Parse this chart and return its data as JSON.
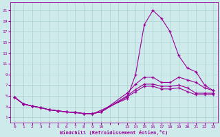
{
  "xlabel": "Windchill (Refroidissement éolien,°C)",
  "bg_color": "#ceeaea",
  "grid_color": "#aacfcf",
  "line_color": "#990099",
  "marker": "+",
  "xtick_positions": [
    0,
    1,
    2,
    3,
    4,
    5,
    6,
    7,
    8,
    9,
    10,
    11,
    12,
    13,
    14,
    15,
    16,
    17,
    18,
    19,
    20,
    21,
    22,
    23
  ],
  "xtick_labels": [
    "0",
    "1",
    "2",
    "3",
    "4",
    "5",
    "6",
    "7",
    "8",
    "9",
    "10",
    "",
    "",
    "13",
    "14",
    "15",
    "16",
    "17",
    "18",
    "19",
    "20",
    "21",
    "22",
    "23"
  ],
  "ytick_positions": [
    1,
    3,
    5,
    7,
    9,
    11,
    13,
    15,
    17,
    19,
    21
  ],
  "xlim": [
    -0.5,
    23.5
  ],
  "ylim": [
    0.0,
    22.5
  ],
  "series": [
    {
      "x": [
        0,
        1,
        2,
        3,
        4,
        5,
        6,
        7,
        8,
        9,
        13,
        14,
        15,
        16,
        17,
        18,
        19,
        20,
        21,
        22,
        23
      ],
      "y": [
        4.7,
        3.5,
        3.1,
        2.8,
        2.4,
        2.2,
        2.0,
        1.9,
        1.7,
        1.6,
        4.5,
        9.0,
        18.3,
        21.0,
        19.5,
        17.0,
        12.5,
        10.2,
        9.5,
        7.0,
        6.0
      ]
    },
    {
      "x": [
        0,
        1,
        2,
        3,
        4,
        5,
        6,
        7,
        8,
        9,
        10,
        13,
        14,
        15,
        16,
        17,
        18,
        19,
        20,
        21,
        22,
        23
      ],
      "y": [
        4.7,
        3.5,
        3.1,
        2.8,
        2.4,
        2.2,
        2.0,
        1.9,
        1.7,
        1.7,
        2.0,
        5.5,
        7.2,
        8.5,
        8.5,
        7.5,
        7.5,
        8.5,
        8.0,
        7.5,
        6.5,
        6.0
      ]
    },
    {
      "x": [
        0,
        1,
        2,
        3,
        4,
        5,
        6,
        7,
        8,
        9,
        10,
        13,
        14,
        15,
        16,
        17,
        18,
        19,
        20,
        21,
        22,
        23
      ],
      "y": [
        4.7,
        3.5,
        3.1,
        2.8,
        2.4,
        2.2,
        2.0,
        1.9,
        1.7,
        1.7,
        2.0,
        5.0,
        6.2,
        7.2,
        7.2,
        6.8,
        6.8,
        7.0,
        6.5,
        5.5,
        5.5,
        5.5
      ]
    },
    {
      "x": [
        0,
        1,
        2,
        3,
        4,
        5,
        6,
        7,
        8,
        9,
        10,
        13,
        14,
        15,
        16,
        17,
        18,
        19,
        20,
        21,
        22,
        23
      ],
      "y": [
        4.7,
        3.5,
        3.1,
        2.8,
        2.4,
        2.2,
        2.0,
        1.9,
        1.7,
        1.7,
        2.0,
        4.8,
        5.8,
        6.8,
        6.8,
        6.3,
        6.3,
        6.5,
        5.8,
        5.2,
        5.2,
        5.3
      ]
    }
  ]
}
